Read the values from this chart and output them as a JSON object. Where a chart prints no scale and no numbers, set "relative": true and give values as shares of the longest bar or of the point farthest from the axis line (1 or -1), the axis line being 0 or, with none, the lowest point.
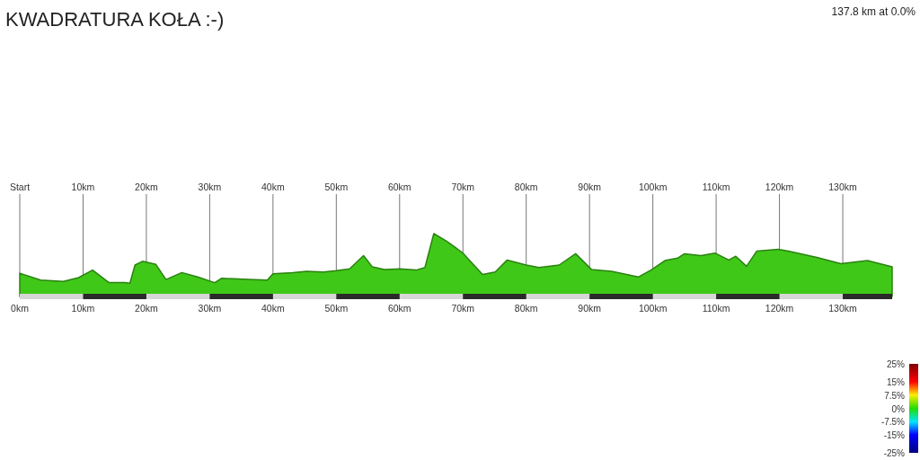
{
  "chart_data": {
    "type": "area",
    "title": "KWADRATURA KOŁA :-)",
    "annotations": [
      "137.8 km at 0.0%"
    ],
    "relative": true,
    "color": "#40c818",
    "grid": "x",
    "x": [
      0,
      3.3,
      6.9,
      9.3,
      11.5,
      14.1,
      16.6,
      17.4,
      18.2,
      19.4,
      21.5,
      23.1,
      25.6,
      28.1,
      30.8,
      31.9,
      36.2,
      39.1,
      40,
      43.1,
      45.3,
      48,
      50,
      52.1,
      54.3,
      55.7,
      57.6,
      60.1,
      62.6,
      64,
      65.4,
      67.4,
      69.9,
      73.1,
      75.1,
      77,
      80,
      82,
      85.2,
      87.8,
      90.3,
      93.5,
      97.7,
      99.7,
      101.9,
      103.9,
      105,
      107.6,
      109.8,
      112,
      113.1,
      114.8,
      116.4,
      119.8,
      121.4,
      125.9,
      129.7,
      133.9,
      137.8
    ],
    "values": [
      0.37,
      0.26,
      0.24,
      0.3,
      0.42,
      0.22,
      0.22,
      0.21,
      0.5,
      0.56,
      0.51,
      0.27,
      0.38,
      0.31,
      0.22,
      0.29,
      0.27,
      0.26,
      0.36,
      0.38,
      0.4,
      0.39,
      0.41,
      0.44,
      0.65,
      0.47,
      0.43,
      0.44,
      0.42,
      0.46,
      1,
      0.88,
      0.7,
      0.35,
      0.39,
      0.58,
      0.5,
      0.46,
      0.5,
      0.68,
      0.43,
      0.4,
      0.31,
      0.42,
      0.57,
      0.61,
      0.68,
      0.65,
      0.69,
      0.58,
      0.64,
      0.48,
      0.72,
      0.75,
      0.72,
      0.62,
      0.52,
      0.57,
      0.47
    ],
    "xlim": [
      0,
      137.8
    ],
    "xticks": [
      {
        "value": 0,
        "label": "0km"
      },
      {
        "value": 10,
        "label": "10km"
      },
      {
        "value": 20,
        "label": "20km"
      },
      {
        "value": 30,
        "label": "30km"
      },
      {
        "value": 40,
        "label": "40km"
      },
      {
        "value": 50,
        "label": "50km"
      },
      {
        "value": 60,
        "label": "60km"
      },
      {
        "value": 70,
        "label": "70km"
      },
      {
        "value": 80,
        "label": "80km"
      },
      {
        "value": 90,
        "label": "90km"
      },
      {
        "value": 100,
        "label": "100km"
      },
      {
        "value": 110,
        "label": "110km"
      },
      {
        "value": 120,
        "label": "120km"
      },
      {
        "value": 130,
        "label": "130km"
      }
    ],
    "x2lim": [
      0,
      137.8
    ],
    "x2ticks": [
      {
        "value": 0,
        "label": "Start"
      },
      {
        "value": 10,
        "label": "10km"
      },
      {
        "value": 20,
        "label": "20km"
      },
      {
        "value": 30,
        "label": "30km"
      },
      {
        "value": 40,
        "label": "40km"
      },
      {
        "value": 50,
        "label": "50km"
      },
      {
        "value": 60,
        "label": "60km"
      },
      {
        "value": 70,
        "label": "70km"
      },
      {
        "value": 80,
        "label": "80km"
      },
      {
        "value": 90,
        "label": "90km"
      },
      {
        "value": 100,
        "label": "100km"
      },
      {
        "value": 110,
        "label": "110km"
      },
      {
        "value": 120,
        "label": "120km"
      },
      {
        "value": 130,
        "label": "130km"
      }
    ],
    "clim": [
      -25,
      25
    ],
    "cticks": [
      {
        "value": 25,
        "label": "25%"
      },
      {
        "value": 15,
        "label": "15%"
      },
      {
        "value": 7.5,
        "label": "7.5%"
      },
      {
        "value": 0,
        "label": "0%"
      },
      {
        "value": -7.5,
        "label": "-7.5%"
      },
      {
        "value": -15,
        "label": "-15%"
      },
      {
        "value": -25,
        "label": "-25%"
      }
    ]
  }
}
